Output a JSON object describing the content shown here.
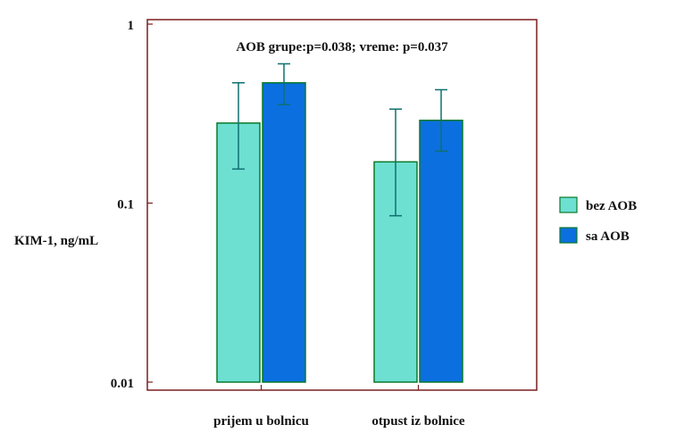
{
  "chart_data": {
    "type": "bar",
    "title": "AOB grupe:p=0.038; vreme: p=0.037",
    "ylabel": "KIM-1, ng/mL",
    "xlabel": "",
    "yscale": "log",
    "ylim": [
      0.01,
      1
    ],
    "yticks": [
      "1",
      "0.1",
      "0.01"
    ],
    "grid": false,
    "legend_position": "right",
    "categories": [
      "prijem u bolnicu",
      "otpust iz bolnice"
    ],
    "series": [
      {
        "name": "bez AOB",
        "color": "#6ee0d2",
        "values": [
          0.28,
          0.17
        ],
        "error_low": [
          0.155,
          0.085
        ],
        "error_high": [
          0.47,
          0.335
        ]
      },
      {
        "name": "sa AOB",
        "color": "#0b6fe0",
        "values": [
          0.47,
          0.29
        ],
        "error_low": [
          0.355,
          0.195
        ],
        "error_high": [
          0.6,
          0.43
        ]
      }
    ]
  },
  "colors": {
    "frame": "#7a1f1f",
    "bar_edge": "#0a7a2a",
    "error_bar": "#0f7070"
  }
}
